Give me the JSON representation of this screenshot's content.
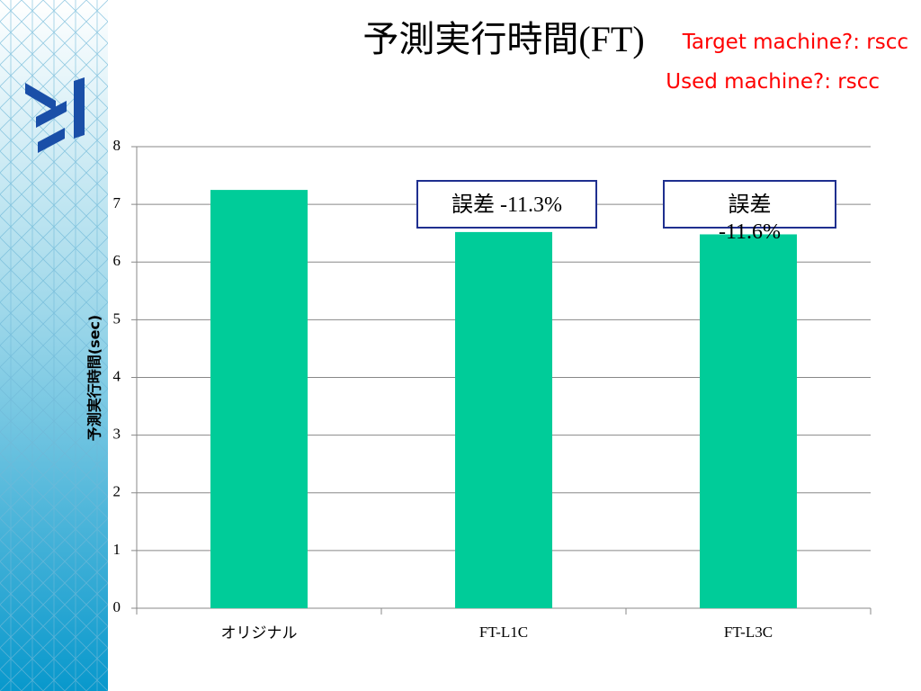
{
  "chart_data": {
    "type": "bar",
    "title": "予測実行時間(FT)",
    "annotations": [
      "Target machine?: rscc",
      "Used machine?: rscc"
    ],
    "callouts": [
      "誤差 -11.3%",
      "誤差 -11.6%"
    ],
    "ylabel": "予測実行時間(sec)",
    "categories": [
      "オリジナル",
      "FT-L1C",
      "FT-L3C"
    ],
    "values": [
      7.25,
      6.52,
      6.48
    ],
    "color": "#00cc99",
    "ylim": [
      0,
      8
    ],
    "yticks": [
      0,
      1,
      2,
      3,
      4,
      5,
      6,
      7,
      8
    ],
    "grid": true
  }
}
